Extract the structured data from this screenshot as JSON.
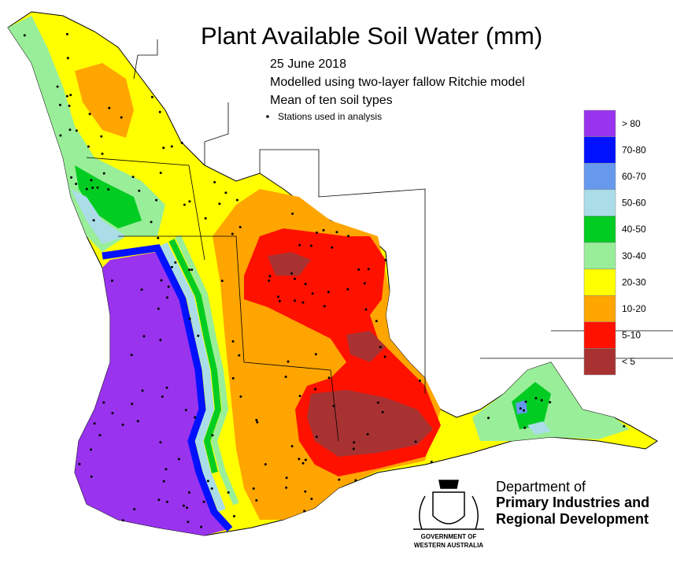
{
  "title": "Plant Available Soil Water (mm)",
  "subtitle": [
    "25 June 2018",
    "Modelled using two-layer fallow Ritchie model",
    "Mean of ten soil types"
  ],
  "stations_note": "Stations used in analysis",
  "legend": [
    {
      "label": "> 80",
      "color": "#9933ee"
    },
    {
      "label": "70-80",
      "color": "#0011ff"
    },
    {
      "label": "60-70",
      "color": "#6699ee"
    },
    {
      "label": "50-60",
      "color": "#aadde8"
    },
    {
      "label": "40-50",
      "color": "#00cc22"
    },
    {
      "label": "30-40",
      "color": "#99ee99"
    },
    {
      "label": "20-30",
      "color": "#ffff00"
    },
    {
      "label": "10-20",
      "color": "#ffa500"
    },
    {
      "label": "5-10",
      "color": "#ff1100"
    },
    {
      "label": "< 5",
      "color": "#a83232"
    }
  ],
  "logo": {
    "department": [
      "Department of",
      "Primary Industries and",
      "Regional Development"
    ],
    "government": [
      "GOVERNMENT OF",
      "WESTERN AUSTRALIA"
    ]
  }
}
